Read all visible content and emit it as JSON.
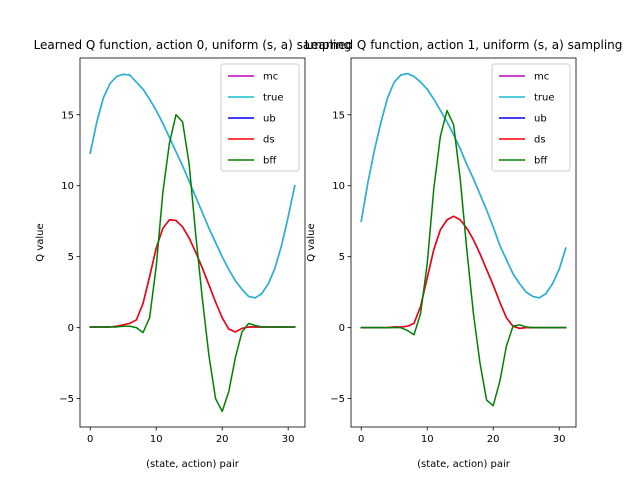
{
  "chart_data": [
    {
      "type": "line",
      "title": "Learned Q function, action 0, uniform (s, a) sampling",
      "xlabel": "(state, action) pair",
      "ylabel": "Q value",
      "xlim": [
        -1.55,
        32.55
      ],
      "ylim": [
        -7.0,
        19.0
      ],
      "xticks": [
        0,
        10,
        20,
        30
      ],
      "yticks": [
        -5,
        0,
        5,
        10,
        15
      ],
      "legend_position": "top-right",
      "x": [
        0,
        1,
        2,
        3,
        4,
        5,
        6,
        7,
        8,
        9,
        10,
        11,
        12,
        13,
        14,
        15,
        16,
        17,
        18,
        19,
        20,
        21,
        22,
        23,
        24,
        25,
        26,
        27,
        28,
        29,
        30,
        31
      ],
      "series": [
        {
          "name": "mc",
          "color": "#bf00bf",
          "values": [
            12.3,
            14.5,
            16.2,
            17.2,
            17.7,
            17.85,
            17.8,
            17.3,
            16.8,
            16.1,
            15.3,
            14.4,
            13.4,
            12.4,
            11.4,
            10.3,
            9.2,
            8.1,
            7.0,
            6.0,
            5.0,
            4.1,
            3.3,
            2.7,
            2.2,
            2.1,
            2.4,
            3.1,
            4.2,
            5.8,
            7.8,
            10.0
          ]
        },
        {
          "name": "true",
          "color": "#17becf",
          "values": [
            12.3,
            14.5,
            16.2,
            17.2,
            17.7,
            17.85,
            17.8,
            17.3,
            16.8,
            16.1,
            15.3,
            14.4,
            13.4,
            12.4,
            11.4,
            10.3,
            9.2,
            8.1,
            7.0,
            6.0,
            5.0,
            4.1,
            3.3,
            2.7,
            2.2,
            2.1,
            2.4,
            3.1,
            4.2,
            5.8,
            7.8,
            10.0
          ]
        },
        {
          "name": "ub",
          "color": "#0000ff",
          "values": [
            0.05,
            0.05,
            0.05,
            0.05,
            0.1,
            0.2,
            0.3,
            0.55,
            1.7,
            3.6,
            5.6,
            7.0,
            7.6,
            7.55,
            7.1,
            6.3,
            5.3,
            4.2,
            3.0,
            1.8,
            0.7,
            -0.1,
            -0.3,
            -0.05,
            0.05,
            0.05,
            0.05,
            0.05,
            0.05,
            0.05,
            0.05,
            0.05
          ]
        },
        {
          "name": "ds",
          "color": "#ff0000",
          "values": [
            0.05,
            0.05,
            0.05,
            0.05,
            0.1,
            0.2,
            0.3,
            0.55,
            1.7,
            3.6,
            5.6,
            7.0,
            7.6,
            7.55,
            7.1,
            6.3,
            5.3,
            4.2,
            3.0,
            1.8,
            0.7,
            -0.1,
            -0.3,
            -0.05,
            0.05,
            0.05,
            0.05,
            0.05,
            0.05,
            0.05,
            0.05,
            0.05
          ]
        },
        {
          "name": "bff",
          "color": "#008000",
          "values": [
            0.05,
            0.05,
            0.05,
            0.05,
            0.05,
            0.1,
            0.1,
            0.0,
            -0.35,
            0.7,
            4.3,
            9.5,
            13.0,
            15.0,
            14.5,
            11.5,
            6.5,
            2.0,
            -2.0,
            -5.0,
            -5.9,
            -4.5,
            -2.1,
            -0.3,
            0.3,
            0.15,
            0.05,
            0.05,
            0.05,
            0.05,
            0.05,
            0.05
          ]
        }
      ]
    },
    {
      "type": "line",
      "title": "Learned Q function, action 1, uniform (s, a) sampling",
      "xlabel": "(state, action) pair",
      "ylabel": "Q value",
      "xlim": [
        -1.55,
        32.55
      ],
      "ylim": [
        -7.0,
        19.0
      ],
      "xticks": [
        0,
        10,
        20,
        30
      ],
      "yticks": [
        -5,
        0,
        5,
        10,
        15
      ],
      "legend_position": "top-right",
      "x": [
        0,
        1,
        2,
        3,
        4,
        5,
        6,
        7,
        8,
        9,
        10,
        11,
        12,
        13,
        14,
        15,
        16,
        17,
        18,
        19,
        20,
        21,
        22,
        23,
        24,
        25,
        26,
        27,
        28,
        29,
        30,
        31
      ],
      "series": [
        {
          "name": "mc",
          "color": "#bf00bf",
          "values": [
            7.5,
            10.2,
            12.5,
            14.5,
            16.2,
            17.3,
            17.8,
            17.9,
            17.7,
            17.3,
            16.8,
            16.1,
            15.3,
            14.5,
            13.6,
            12.6,
            11.5,
            10.5,
            9.4,
            8.3,
            7.1,
            5.8,
            4.8,
            3.8,
            3.1,
            2.5,
            2.2,
            2.1,
            2.4,
            3.1,
            4.1,
            5.6
          ]
        },
        {
          "name": "true",
          "color": "#17becf",
          "values": [
            7.5,
            10.2,
            12.5,
            14.5,
            16.2,
            17.3,
            17.8,
            17.9,
            17.7,
            17.3,
            16.8,
            16.1,
            15.3,
            14.5,
            13.6,
            12.6,
            11.5,
            10.5,
            9.4,
            8.3,
            7.1,
            5.8,
            4.8,
            3.8,
            3.1,
            2.5,
            2.2,
            2.1,
            2.4,
            3.1,
            4.1,
            5.6
          ]
        },
        {
          "name": "ub",
          "color": "#0000ff",
          "values": [
            0.0,
            0.0,
            0.0,
            0.0,
            0.0,
            0.05,
            0.05,
            0.1,
            0.3,
            1.5,
            3.5,
            5.5,
            6.9,
            7.6,
            7.85,
            7.6,
            7.0,
            6.2,
            5.2,
            4.1,
            3.0,
            1.8,
            0.7,
            0.1,
            -0.05,
            0.0,
            0.0,
            0.0,
            0.0,
            0.0,
            0.0,
            0.0
          ]
        },
        {
          "name": "ds",
          "color": "#ff0000",
          "values": [
            0.0,
            0.0,
            0.0,
            0.0,
            0.0,
            0.05,
            0.05,
            0.1,
            0.3,
            1.5,
            3.5,
            5.5,
            6.9,
            7.6,
            7.85,
            7.6,
            7.0,
            6.2,
            5.2,
            4.1,
            3.0,
            1.8,
            0.7,
            0.1,
            -0.05,
            0.0,
            0.0,
            0.0,
            0.0,
            0.0,
            0.0,
            0.0
          ]
        },
        {
          "name": "bff",
          "color": "#008000",
          "values": [
            0.0,
            0.0,
            0.0,
            0.0,
            0.0,
            0.0,
            0.0,
            -0.2,
            -0.5,
            1.0,
            4.5,
            9.8,
            13.5,
            15.3,
            14.3,
            10.5,
            5.5,
            1.0,
            -2.5,
            -5.1,
            -5.5,
            -3.8,
            -1.3,
            0.1,
            0.2,
            0.05,
            0.0,
            0.0,
            0.0,
            0.0,
            0.0,
            0.0
          ]
        }
      ]
    }
  ]
}
